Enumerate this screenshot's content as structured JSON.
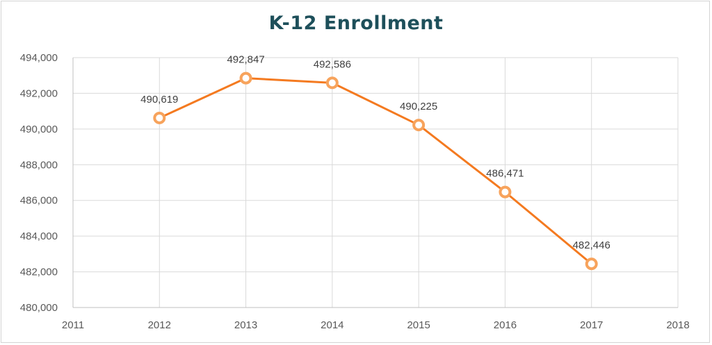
{
  "chart_data": {
    "type": "line",
    "title": "K-12 Enrollment",
    "xlabel": "",
    "ylabel": "",
    "x_ticks": [
      "2011",
      "2012",
      "2013",
      "2014",
      "2015",
      "2016",
      "2017",
      "2018"
    ],
    "y_ticks": [
      "480,000",
      "482,000",
      "484,000",
      "486,000",
      "488,000",
      "490,000",
      "492,000",
      "494,000"
    ],
    "xlim": [
      2011,
      2018
    ],
    "ylim": [
      480000,
      494000
    ],
    "grid": true,
    "legend": "none",
    "series": [
      {
        "color": "#f47a20",
        "marker_color": "#f7a35c",
        "x": [
          2012,
          2013,
          2014,
          2015,
          2016,
          2017
        ],
        "y": [
          490619,
          492847,
          492586,
          490225,
          486471,
          482446
        ],
        "labels": [
          "490,619",
          "492,847",
          "492,586",
          "490,225",
          "486,471",
          "482,446"
        ]
      }
    ]
  },
  "colors": {
    "title": "#1d4f5a",
    "gridline": "#d9d9d9",
    "axis": "#bfbfbf",
    "line": "#f47a20",
    "marker_ring": "#f7a35c"
  }
}
